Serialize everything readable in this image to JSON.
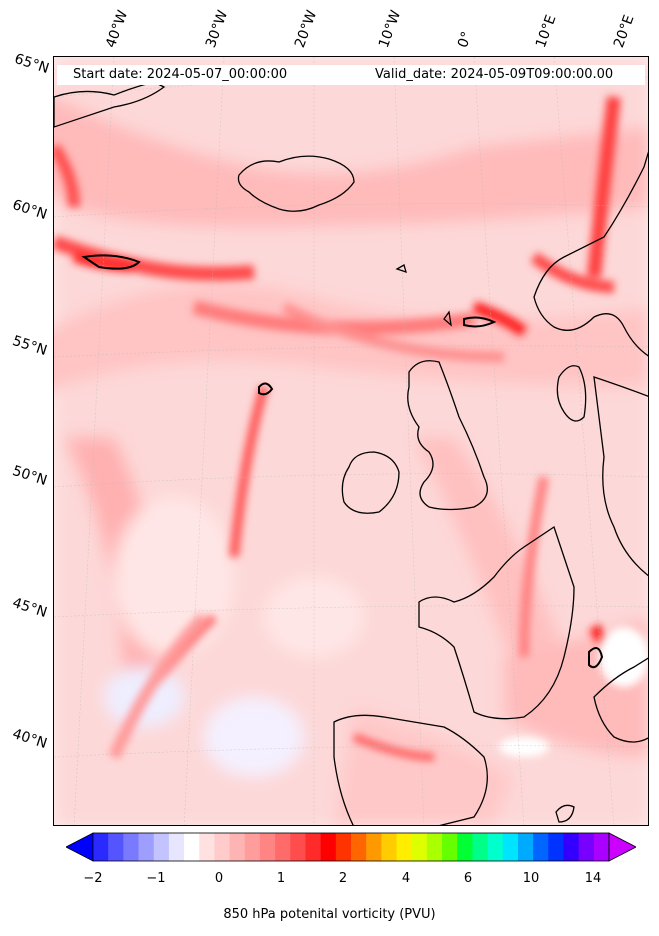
{
  "map": {
    "start_date": "Start date: 2024-05-07_00:00:00",
    "valid_date": "Valid_date: 2024-05-09T09:00:00.00",
    "longitude_labels": [
      "40°W",
      "30°W",
      "20°W",
      "10°W",
      "0°",
      "10°E",
      "20°E"
    ],
    "latitude_labels": [
      "65°N",
      "60°N",
      "55°N",
      "50°N",
      "45°N",
      "40°N"
    ],
    "projection_note": "",
    "field_colors": {
      "background": "#fdecec",
      "light": "#ffd0d0",
      "medium": "#ffa6a6",
      "strong": "#ff6e6e",
      "intense": "#ff2020",
      "negative": "#d6dcff"
    }
  },
  "colorbar": {
    "title": "850 hPa potenital vorticity (PVU)",
    "tick_labels": [
      "−2",
      "−1",
      "0",
      "1",
      "2",
      "4",
      "6",
      "10",
      "14"
    ],
    "colors": [
      "#0000ff",
      "#2a2aff",
      "#5555ff",
      "#7a7aff",
      "#9e9eff",
      "#c3c3ff",
      "#e6e6ff",
      "#ffffff",
      "#ffe1e1",
      "#ffcbcb",
      "#ffb4b4",
      "#ff9c9c",
      "#ff8484",
      "#ff6a6a",
      "#ff4c4c",
      "#ff2a2a",
      "#ff0000",
      "#ff3300",
      "#ff6600",
      "#ff9900",
      "#ffcc00",
      "#ffee00",
      "#ddff00",
      "#aaff00",
      "#66ff00",
      "#00ff33",
      "#00ff88",
      "#00ffcc",
      "#00e5ff",
      "#00aaff",
      "#0066ff",
      "#0033ff",
      "#3300ff",
      "#7700ff",
      "#aa00ff",
      "#cc00ff"
    ],
    "extend": "both"
  }
}
